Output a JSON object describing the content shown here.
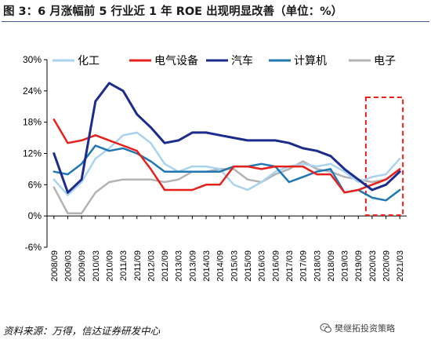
{
  "title": "图 3：6 月涨幅前 5 行业近 1 年 ROE 出现明显改善（单位：%）",
  "source": "资料来源：万得，信达证券研发中心",
  "watermark": "樊继拓投资策略",
  "colors": {
    "化工": "#a9d3ef",
    "电气设备": "#e8201c",
    "汽车": "#1c2c8c",
    "计算机": "#1f78b4",
    "电子": "#b3b3b3",
    "highlight": "#e8201c",
    "title_rule": "#3a5a8c"
  },
  "chart_data": {
    "type": "line",
    "xlabel": "",
    "ylabel": "",
    "ylim": [
      -6,
      30
    ],
    "yticks": [
      "-6%",
      "0%",
      "6%",
      "12%",
      "18%",
      "24%",
      "30%"
    ],
    "yvalues": [
      -6,
      0,
      6,
      12,
      18,
      24,
      30
    ],
    "xticks": [
      "2008/09",
      "2009/03",
      "2009/09",
      "2010/03",
      "2010/09",
      "2011/03",
      "2011/09",
      "2012/03",
      "2012/09",
      "2013/03",
      "2013/09",
      "2014/03",
      "2014/09",
      "2015/03",
      "2015/09",
      "2016/03",
      "2016/09",
      "2017/03",
      "2017/09",
      "2018/03",
      "2018/09",
      "2019/03",
      "2019/09",
      "2020/03",
      "2020/09",
      "2021/03"
    ],
    "legend_position": "top",
    "grid": false,
    "highlight_box": {
      "from": "2020/03",
      "to": "2021/03",
      "style": "red dashed rectangle"
    },
    "series": [
      {
        "name": "化工",
        "values": [
          7.0,
          4.0,
          6.5,
          11.0,
          13.0,
          15.5,
          16.0,
          14.0,
          10.0,
          8.5,
          9.5,
          9.5,
          9.0,
          6.0,
          5.0,
          6.5,
          8.5,
          9.5,
          10.0,
          9.5,
          10.0,
          8.5,
          6.5,
          7.5,
          8.0,
          11.0
        ]
      },
      {
        "name": "电气设备",
        "values": [
          18.5,
          14.0,
          14.5,
          15.5,
          14.5,
          13.5,
          12.5,
          9.0,
          5.0,
          5.0,
          5.0,
          6.0,
          6.0,
          9.5,
          9.5,
          9.0,
          9.5,
          9.5,
          9.5,
          8.0,
          8.0,
          4.5,
          5.0,
          6.0,
          7.0,
          9.0
        ]
      },
      {
        "name": "汽车",
        "values": [
          12.0,
          4.5,
          7.0,
          22.0,
          25.5,
          24.0,
          19.5,
          17.0,
          14.0,
          14.5,
          16.0,
          16.0,
          15.5,
          15.0,
          14.5,
          14.5,
          14.5,
          14.0,
          13.0,
          12.5,
          11.5,
          9.0,
          7.0,
          5.0,
          6.0,
          8.5
        ]
      },
      {
        "name": "计算机",
        "values": [
          8.5,
          8.0,
          10.0,
          13.5,
          12.5,
          13.0,
          12.0,
          10.5,
          8.5,
          8.5,
          8.5,
          8.5,
          8.5,
          9.5,
          9.5,
          10.0,
          9.5,
          6.5,
          7.5,
          8.5,
          9.0,
          4.5,
          5.0,
          3.5,
          3.0,
          5.0
        ]
      },
      {
        "name": "电子",
        "values": [
          5.5,
          0.5,
          0.5,
          4.5,
          6.5,
          7.0,
          7.0,
          7.0,
          6.5,
          7.0,
          8.5,
          8.5,
          9.0,
          9.0,
          7.0,
          6.5,
          8.0,
          9.0,
          10.5,
          9.0,
          8.5,
          7.5,
          7.0,
          6.5,
          7.0,
          9.0
        ]
      }
    ]
  }
}
